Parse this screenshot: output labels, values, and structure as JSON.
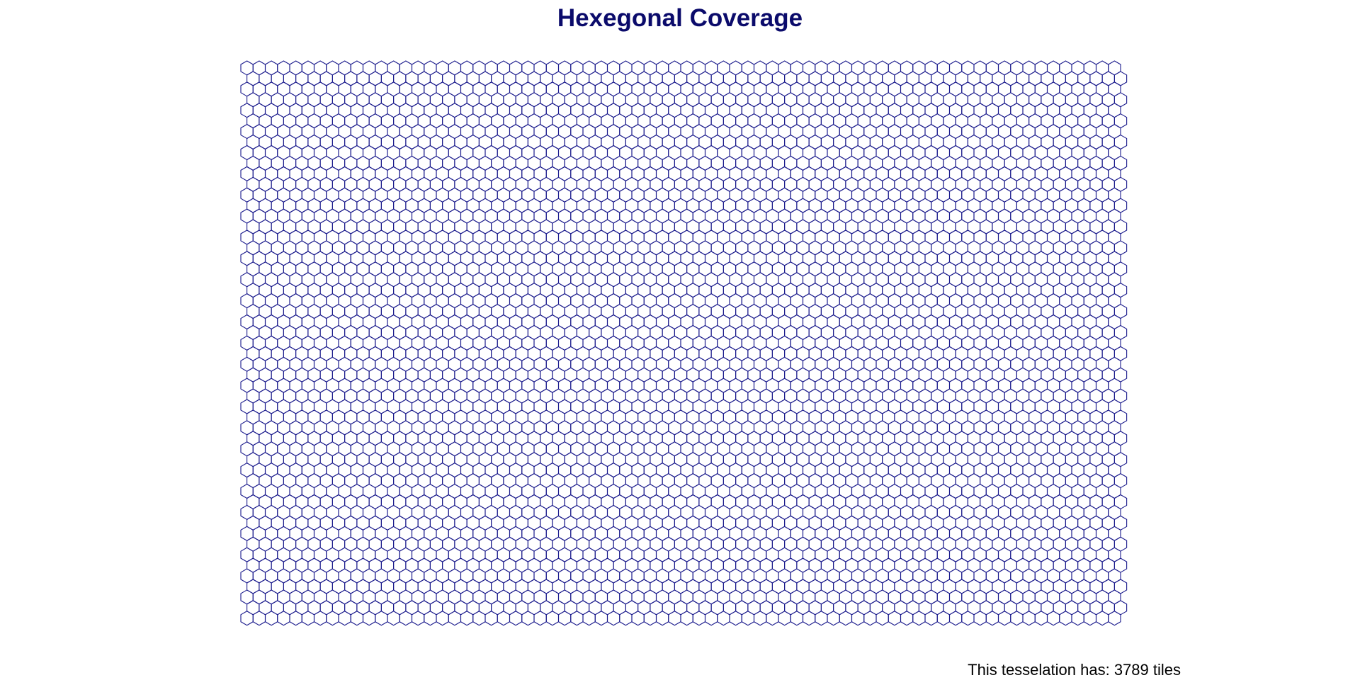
{
  "title": "Hexegonal Coverage",
  "caption": "This tesselation has: 3789 tiles",
  "colors": {
    "title": "#0b0b6b",
    "stroke": "#1a1a8c",
    "background": "#ffffff"
  },
  "tile_shape": "hexagon",
  "tile_count": 3789
}
